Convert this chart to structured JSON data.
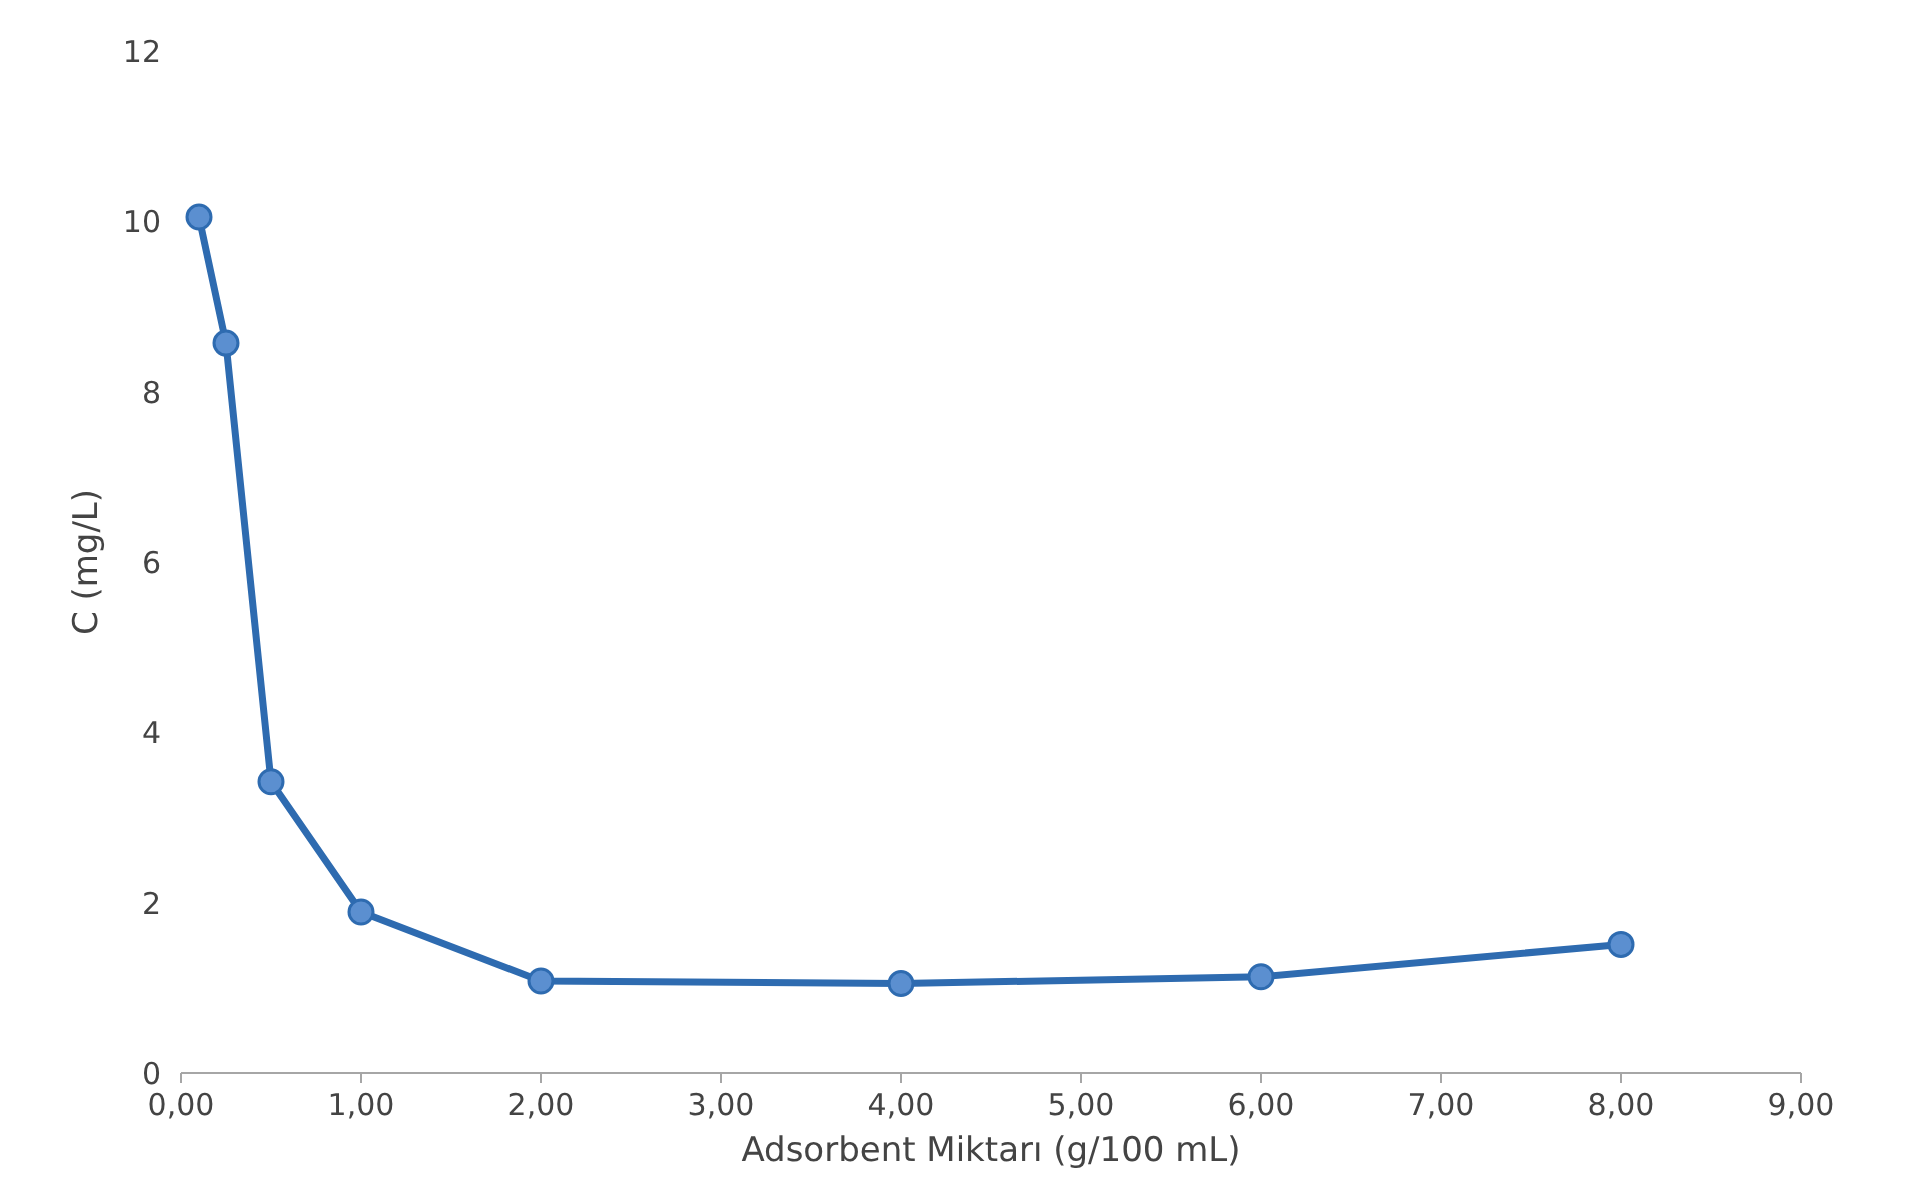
{
  "chart_data": {
    "type": "line",
    "xlabel": "Adsorbent Miktarı (g/100 mL)",
    "ylabel": "C (mg/L)",
    "x": [
      0.1,
      0.25,
      0.5,
      1.0,
      2.0,
      4.0,
      6.0,
      8.0
    ],
    "series": [
      {
        "color": "#2e6bb0",
        "values": [
          10.05,
          8.57,
          3.42,
          1.89,
          1.08,
          1.05,
          1.13,
          1.51
        ]
      }
    ],
    "xlim": [
      0,
      9
    ],
    "xticks": [
      {
        "value": 0,
        "label": "0,00"
      },
      {
        "value": 1,
        "label": "1,00"
      },
      {
        "value": 2,
        "label": "2,00"
      },
      {
        "value": 3,
        "label": "3,00"
      },
      {
        "value": 4,
        "label": "4,00"
      },
      {
        "value": 5,
        "label": "5,00"
      },
      {
        "value": 6,
        "label": "6,00"
      },
      {
        "value": 7,
        "label": "7,00"
      },
      {
        "value": 8,
        "label": "8,00"
      },
      {
        "value": 9,
        "label": "9,00"
      }
    ],
    "ylim": [
      0,
      12
    ],
    "yticks": [
      0,
      2,
      4,
      6,
      8,
      10,
      12
    ],
    "grid": false,
    "marker": "circle",
    "line_style": "solid"
  }
}
